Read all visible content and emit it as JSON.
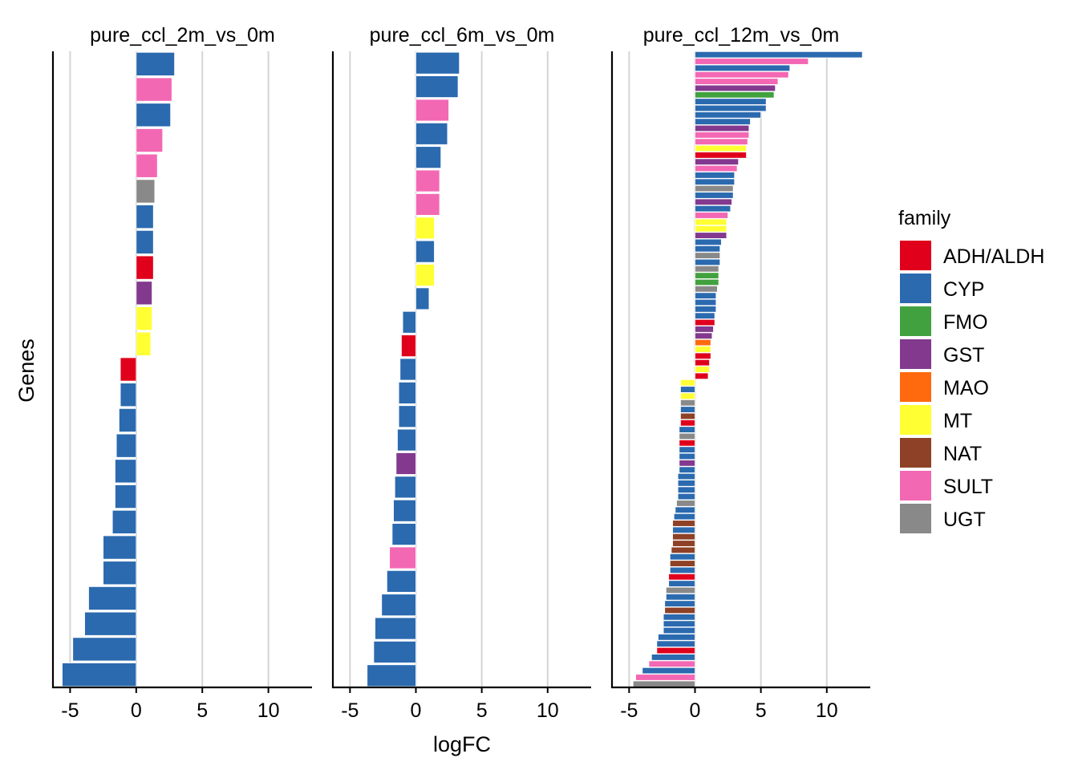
{
  "chart_data": {
    "type": "bar",
    "orientation": "horizontal",
    "xlabel": "logFC",
    "ylabel": "Genes",
    "xlim": [
      -6.3,
      13.3
    ],
    "xticks": [
      -5,
      0,
      5,
      10
    ],
    "xtick_labels": [
      "-5",
      "0",
      "5",
      "10"
    ],
    "grid": "vertical major gridlines",
    "legend": {
      "title": "family",
      "position": "right",
      "entries": [
        {
          "name": "ADH/ALDH",
          "color": "#E0001C"
        },
        {
          "name": "CYP",
          "color": "#2B6AAF"
        },
        {
          "name": "FMO",
          "color": "#42A13F"
        },
        {
          "name": "GST",
          "color": "#82398E"
        },
        {
          "name": "MAO",
          "color": "#FF6A0E"
        },
        {
          "name": "MT",
          "color": "#FFFF33"
        },
        {
          "name": "NAT",
          "color": "#8E4126"
        },
        {
          "name": "SULT",
          "color": "#F368B3"
        },
        {
          "name": "UGT",
          "color": "#898989"
        }
      ]
    },
    "panels": [
      {
        "title": "pure_ccl_2m_vs_0m",
        "values": [
          2.9,
          2.7,
          2.6,
          2.0,
          1.6,
          1.4,
          1.3,
          1.3,
          1.3,
          1.2,
          1.2,
          1.1,
          -1.2,
          -1.2,
          -1.3,
          -1.5,
          -1.6,
          -1.6,
          -1.8,
          -2.5,
          -2.5,
          -3.6,
          -3.9,
          -4.8,
          -5.6
        ],
        "families": [
          "CYP",
          "SULT",
          "CYP",
          "SULT",
          "SULT",
          "UGT",
          "CYP",
          "CYP",
          "ADH/ALDH",
          "GST",
          "MT",
          "MT",
          "ADH/ALDH",
          "CYP",
          "CYP",
          "CYP",
          "CYP",
          "CYP",
          "CYP",
          "CYP",
          "CYP",
          "CYP",
          "CYP",
          "CYP",
          "CYP"
        ]
      },
      {
        "title": "pure_ccl_6m_vs_0m",
        "values": [
          3.3,
          3.2,
          2.5,
          2.4,
          1.9,
          1.8,
          1.8,
          1.4,
          1.4,
          1.4,
          1.0,
          -1.0,
          -1.1,
          -1.2,
          -1.3,
          -1.3,
          -1.4,
          -1.5,
          -1.6,
          -1.7,
          -1.8,
          -2.0,
          -2.2,
          -2.6,
          -3.1,
          -3.2,
          -3.7
        ],
        "families": [
          "CYP",
          "CYP",
          "SULT",
          "CYP",
          "CYP",
          "SULT",
          "SULT",
          "MT",
          "CYP",
          "MT",
          "CYP",
          "CYP",
          "ADH/ALDH",
          "CYP",
          "CYP",
          "CYP",
          "CYP",
          "GST",
          "CYP",
          "CYP",
          "CYP",
          "SULT",
          "CYP",
          "CYP",
          "CYP",
          "CYP",
          "CYP"
        ]
      },
      {
        "title": "pure_ccl_12m_vs_0m",
        "values": [
          12.7,
          8.6,
          7.2,
          7.1,
          6.3,
          6.1,
          6.0,
          5.4,
          5.4,
          5.0,
          4.2,
          4.1,
          4.1,
          4.0,
          3.9,
          3.9,
          3.3,
          3.2,
          3.0,
          3.0,
          2.9,
          2.9,
          2.8,
          2.7,
          2.5,
          2.4,
          2.4,
          2.4,
          2.0,
          1.9,
          1.9,
          1.9,
          1.8,
          1.8,
          1.8,
          1.7,
          1.6,
          1.6,
          1.6,
          1.5,
          1.5,
          1.4,
          1.3,
          1.2,
          1.2,
          1.2,
          1.1,
          1.1,
          1.0,
          -1.1,
          -1.1,
          -1.1,
          -1.1,
          -1.1,
          -1.1,
          -1.1,
          -1.2,
          -1.2,
          -1.2,
          -1.2,
          -1.2,
          -1.2,
          -1.2,
          -1.3,
          -1.3,
          -1.3,
          -1.3,
          -1.4,
          -1.5,
          -1.6,
          -1.7,
          -1.7,
          -1.7,
          -1.7,
          -1.8,
          -1.9,
          -1.9,
          -1.9,
          -2.0,
          -2.0,
          -2.2,
          -2.2,
          -2.3,
          -2.3,
          -2.4,
          -2.4,
          -2.4,
          -2.8,
          -2.9,
          -2.9,
          -3.3,
          -3.5,
          -4.0,
          -4.5,
          -4.7
        ],
        "families": [
          "CYP",
          "SULT",
          "CYP",
          "SULT",
          "SULT",
          "GST",
          "FMO",
          "CYP",
          "CYP",
          "CYP",
          "CYP",
          "GST",
          "SULT",
          "SULT",
          "MT",
          "ADH/ALDH",
          "GST",
          "SULT",
          "CYP",
          "CYP",
          "UGT",
          "CYP",
          "GST",
          "CYP",
          "SULT",
          "MT",
          "MT",
          "GST",
          "CYP",
          "CYP",
          "UGT",
          "CYP",
          "UGT",
          "FMO",
          "FMO",
          "UGT",
          "CYP",
          "CYP",
          "CYP",
          "CYP",
          "ADH/ALDH",
          "GST",
          "GST",
          "MAO",
          "MT",
          "ADH/ALDH",
          "ADH/ALDH",
          "MT",
          "ADH/ALDH",
          "MT",
          "CYP",
          "MT",
          "UGT",
          "CYP",
          "NAT",
          "ADH/ALDH",
          "CYP",
          "UGT",
          "ADH/ALDH",
          "CYP",
          "CYP",
          "GST",
          "CYP",
          "CYP",
          "CYP",
          "CYP",
          "CYP",
          "UGT",
          "CYP",
          "CYP",
          "NAT",
          "CYP",
          "NAT",
          "NAT",
          "NAT",
          "CYP",
          "NAT",
          "CYP",
          "ADH/ALDH",
          "CYP",
          "UGT",
          "CYP",
          "CYP",
          "NAT",
          "CYP",
          "CYP",
          "CYP",
          "CYP",
          "CYP",
          "ADH/ALDH",
          "CYP",
          "SULT",
          "CYP",
          "SULT",
          "UGT"
        ]
      }
    ]
  }
}
